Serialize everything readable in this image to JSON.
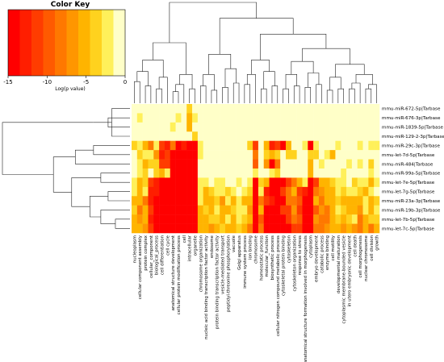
{
  "chart_data": {
    "type": "heatmap",
    "title": "",
    "color_key": {
      "title": "Color Key",
      "xlabel": "Log(p value)",
      "ticks": [
        "-15",
        "-10",
        "-5",
        "0"
      ],
      "range": [
        -15,
        0
      ],
      "colors": [
        "#ff0000",
        "#ff1e00",
        "#ff3c00",
        "#ff5a00",
        "#ff7800",
        "#ff9600",
        "#ffb400",
        "#ffd21e",
        "#fff05a",
        "#ffffc8"
      ]
    },
    "rows": [
      "mmu-miR-672-5p|Tarbase",
      "mmu-miR-676-3p|Tarbase",
      "mmu-miR-1839-5p|Tarbase",
      "mmu-miR-129-2-3p|Tarbase",
      "mmu-miR-29c-3p|Tarbase",
      "mmu-let-7d-5p|Tarbase",
      "mmu-miR-484|Tarbase",
      "mmu-miR-99a-5p|Tarbase",
      "mmu-let-7e-5p|Tarbase",
      "mmu-let-7g-5p|Tarbase",
      "mmu-miR-23a-3p|Tarbase",
      "mmu-miR-19b-3p|Tarbase",
      "mmu-let-7b-5p|Tarbase",
      "mmu-let-7c-5p|Tarbase"
    ],
    "columns": [
      "nucleoplasm",
      "cellular component assembly",
      "protein complex",
      "cellular_component",
      "biological_process",
      "cell differentiation",
      "cell cycle",
      "anatomical structure development",
      "cellular protein modification process",
      "cell",
      "intracellular",
      "organelle",
      "chromosome organization",
      "nucleic acid binding transcription factor activity",
      "endosome",
      "protein binding transcription factor activity",
      "vesicle-mediated transport",
      "peptidyl-threonine phosphorylation",
      "vacuole",
      "Golgi apparatus",
      "immune system process",
      "ion binding",
      "chromosome",
      "homeostatic process",
      "molecular_function",
      "biosynthetic process",
      "cellular nitrogen compound metabolic process",
      "cytoskeletal protein binding",
      "cytoskeleton",
      "cytoskeleton organization",
      "response to stress",
      "anatomical structure formation involved in morphogenesis",
      "cytoplasm",
      "embryo development",
      "catabolic process",
      "enzyme binding",
      "cell motility",
      "developmental maturation",
      "cytoplasmic membrane-bounded vesicle",
      "in utero embryonic development",
      "cell death",
      "cell morphogenesis",
      "nuclear chromosome",
      "cell division",
      "growth"
    ],
    "values": [
      [
        0,
        0,
        0,
        0,
        0,
        0,
        0,
        -1,
        0,
        -1,
        -4,
        0,
        0,
        0,
        0,
        0,
        0,
        0,
        0,
        0,
        0,
        0,
        0,
        0,
        0,
        0,
        0,
        0,
        0,
        0,
        0,
        0,
        0,
        0,
        0,
        0,
        0,
        0,
        0,
        0,
        0,
        0,
        0,
        0,
        0
      ],
      [
        0,
        -3,
        0,
        0,
        0,
        0,
        0,
        -1,
        -2,
        0,
        -5,
        -3,
        0,
        0,
        0,
        0,
        0,
        0,
        0,
        0,
        0,
        0,
        0,
        0,
        0,
        0,
        0,
        0,
        0,
        0,
        0,
        0,
        0,
        0,
        0,
        0,
        0,
        0,
        0,
        0,
        0,
        0,
        0,
        0,
        0
      ],
      [
        0,
        0,
        0,
        0,
        0,
        0,
        0,
        -2,
        0,
        0,
        -5,
        -1,
        0,
        0,
        0,
        0,
        0,
        0,
        0,
        0,
        0,
        0,
        0,
        0,
        0,
        0,
        0,
        0,
        0,
        0,
        0,
        0,
        0,
        0,
        0,
        0,
        0,
        0,
        0,
        0,
        0,
        0,
        0,
        0,
        0
      ],
      [
        0,
        0,
        0,
        0,
        0,
        0,
        0,
        0,
        0,
        -1,
        -1,
        -4,
        0,
        0,
        0,
        0,
        0,
        0,
        0,
        0,
        0,
        0,
        0,
        0,
        0,
        0,
        0,
        0,
        0,
        0,
        0,
        0,
        0,
        0,
        0,
        0,
        0,
        0,
        0,
        0,
        0,
        0,
        0,
        0,
        0
      ],
      [
        -4,
        -2,
        -5,
        -9,
        -2,
        -12,
        -13,
        -8,
        -15,
        -13,
        -15,
        -15,
        -2,
        0,
        0,
        0,
        0,
        0,
        0,
        0,
        0,
        -4,
        -12,
        0,
        -6,
        -13,
        -12,
        -15,
        -6,
        0,
        -1,
        -3,
        -14,
        -3,
        0,
        0,
        -1,
        -3,
        -1,
        0,
        0,
        -3,
        0,
        -3,
        -3
      ],
      [
        0,
        -4,
        -3,
        -3,
        -7,
        -13,
        -12,
        -15,
        -15,
        -15,
        -15,
        -15,
        -2,
        0,
        0,
        0,
        0,
        0,
        0,
        0,
        0,
        0,
        -9,
        0,
        -4,
        -6,
        -4,
        0,
        -4,
        -4,
        0,
        0,
        -4,
        -4,
        0,
        -2,
        -5,
        0,
        0,
        0,
        0,
        0,
        0,
        0,
        0
      ],
      [
        -1,
        -2,
        -5,
        -4,
        -4,
        -12,
        -11,
        -15,
        -15,
        -15,
        -15,
        -15,
        0,
        0,
        0,
        0,
        0,
        0,
        0,
        0,
        0,
        -1,
        -10,
        0,
        -7,
        -15,
        -8,
        0,
        0,
        0,
        0,
        0,
        -6,
        0,
        -2,
        0,
        0,
        0,
        0,
        -3,
        0,
        -3,
        0,
        -4,
        0
      ],
      [
        0,
        -2,
        -4,
        0,
        -4,
        -5,
        -3,
        -15,
        -15,
        -15,
        -15,
        -15,
        0,
        0,
        0,
        0,
        0,
        0,
        0,
        0,
        0,
        0,
        -2,
        0,
        0,
        -3,
        -4,
        0,
        0,
        0,
        0,
        0,
        -5,
        0,
        0,
        0,
        0,
        0,
        -2,
        0,
        0,
        0,
        0,
        -3,
        0
      ],
      [
        -3,
        -5,
        -4,
        -12,
        -13,
        -15,
        -15,
        -15,
        -15,
        -15,
        -15,
        -15,
        -3,
        -2,
        -1,
        -3,
        -2,
        0,
        -1,
        -2,
        0,
        -3,
        -15,
        -4,
        -5,
        -14,
        -15,
        -15,
        -11,
        -8,
        -6,
        -2,
        -14,
        -11,
        -6,
        -5,
        -4,
        -2,
        -2,
        -1,
        -4,
        -3,
        -3,
        -6,
        -2
      ],
      [
        -2,
        -6,
        -3,
        -13,
        -13,
        -15,
        -15,
        -15,
        -15,
        -15,
        -15,
        -15,
        -2,
        -5,
        -4,
        -2,
        -3,
        -4,
        -2,
        -1,
        -3,
        -4,
        -15,
        -3,
        -13,
        -15,
        -15,
        -12,
        -9,
        -5,
        -11,
        -13,
        -15,
        -9,
        -7,
        -5,
        -6,
        -3,
        -4,
        -3,
        -2,
        -4,
        -5,
        -3,
        -1
      ],
      [
        -6,
        -6,
        -8,
        -13,
        -14,
        -15,
        -15,
        -15,
        -15,
        -15,
        -15,
        -15,
        -3,
        -6,
        -5,
        -4,
        -7,
        -3,
        -6,
        -2,
        -5,
        -6,
        -15,
        -8,
        -12,
        -13,
        -15,
        -14,
        -9,
        -8,
        -10,
        -15,
        -14,
        -5,
        -8,
        -6,
        -5,
        -4,
        -5,
        -6,
        -5,
        -6,
        -3,
        -5,
        -4
      ],
      [
        -4,
        -8,
        -6,
        -12,
        -14,
        -15,
        -15,
        -15,
        -15,
        -15,
        -15,
        -15,
        -5,
        -4,
        -6,
        -3,
        -5,
        -6,
        -4,
        -3,
        -3,
        -7,
        -15,
        -5,
        -14,
        -15,
        -14,
        -12,
        -11,
        -7,
        -12,
        -15,
        -15,
        -10,
        -7,
        -8,
        -6,
        -3,
        -4,
        -5,
        -6,
        -7,
        -2,
        -5,
        -3
      ],
      [
        -5,
        -7,
        -5,
        -13,
        -15,
        -15,
        -15,
        -15,
        -15,
        -15,
        -15,
        -15,
        -5,
        -5,
        -4,
        -4,
        -6,
        -2,
        -5,
        -3,
        -4,
        -5,
        -15,
        -10,
        -14,
        -15,
        -15,
        -15,
        -12,
        -8,
        -10,
        -15,
        -15,
        -7,
        -8,
        -9,
        -6,
        -4,
        -5,
        -4,
        -3,
        -8,
        -5,
        -4,
        -4
      ],
      [
        -6,
        -5,
        -7,
        -12,
        -15,
        -15,
        -15,
        -15,
        -15,
        -15,
        -15,
        -15,
        -6,
        -6,
        -7,
        -5,
        -4,
        -5,
        -6,
        -4,
        -6,
        -8,
        -15,
        -9,
        -15,
        -15,
        -15,
        -15,
        -14,
        -11,
        -11,
        -15,
        -15,
        -8,
        -9,
        -7,
        -6,
        -5,
        -7,
        -6,
        -7,
        -8,
        -5,
        -9,
        -5
      ]
    ]
  }
}
